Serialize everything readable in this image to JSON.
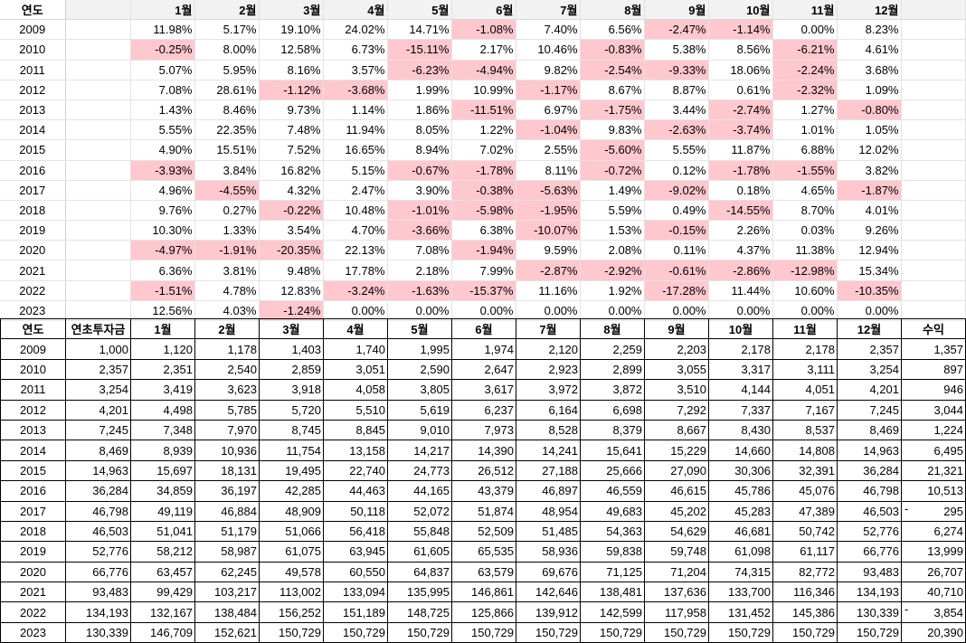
{
  "returns_table": {
    "year_header": "연도",
    "month_headers": [
      "1월",
      "2월",
      "3월",
      "4월",
      "5월",
      "6월",
      "7월",
      "8월",
      "9월",
      "10월",
      "11월",
      "12월"
    ],
    "rows": [
      {
        "year": "2009",
        "values": [
          "11.98%",
          "5.17%",
          "19.10%",
          "24.02%",
          "14.71%",
          "-1.08%",
          "7.40%",
          "6.56%",
          "-2.47%",
          "-1.14%",
          "0.00%",
          "8.23%"
        ]
      },
      {
        "year": "2010",
        "values": [
          "-0.25%",
          "8.00%",
          "12.58%",
          "6.73%",
          "-15.11%",
          "2.17%",
          "10.46%",
          "-0.83%",
          "5.38%",
          "8.56%",
          "-6.21%",
          "4.61%"
        ]
      },
      {
        "year": "2011",
        "values": [
          "5.07%",
          "5.95%",
          "8.16%",
          "3.57%",
          "-6.23%",
          "-4.94%",
          "9.82%",
          "-2.54%",
          "-9.33%",
          "18.06%",
          "-2.24%",
          "3.68%"
        ]
      },
      {
        "year": "2012",
        "values": [
          "7.08%",
          "28.61%",
          "-1.12%",
          "-3.68%",
          "1.99%",
          "10.99%",
          "-1.17%",
          "8.67%",
          "8.87%",
          "0.61%",
          "-2.32%",
          "1.09%"
        ]
      },
      {
        "year": "2013",
        "values": [
          "1.43%",
          "8.46%",
          "9.73%",
          "1.14%",
          "1.86%",
          "-11.51%",
          "6.97%",
          "-1.75%",
          "3.44%",
          "-2.74%",
          "1.27%",
          "-0.80%"
        ]
      },
      {
        "year": "2014",
        "values": [
          "5.55%",
          "22.35%",
          "7.48%",
          "11.94%",
          "8.05%",
          "1.22%",
          "-1.04%",
          "9.83%",
          "-2.63%",
          "-3.74%",
          "1.01%",
          "1.05%"
        ]
      },
      {
        "year": "2015",
        "values": [
          "4.90%",
          "15.51%",
          "7.52%",
          "16.65%",
          "8.94%",
          "7.02%",
          "2.55%",
          "-5.60%",
          "5.55%",
          "11.87%",
          "6.88%",
          "12.02%"
        ]
      },
      {
        "year": "2016",
        "values": [
          "-3.93%",
          "3.84%",
          "16.82%",
          "5.15%",
          "-0.67%",
          "-1.78%",
          "8.11%",
          "-0.72%",
          "0.12%",
          "-1.78%",
          "-1.55%",
          "3.82%"
        ]
      },
      {
        "year": "2017",
        "values": [
          "4.96%",
          "-4.55%",
          "4.32%",
          "2.47%",
          "3.90%",
          "-0.38%",
          "-5.63%",
          "1.49%",
          "-9.02%",
          "0.18%",
          "4.65%",
          "-1.87%"
        ]
      },
      {
        "year": "2018",
        "values": [
          "9.76%",
          "0.27%",
          "-0.22%",
          "10.48%",
          "-1.01%",
          "-5.98%",
          "-1.95%",
          "5.59%",
          "0.49%",
          "-14.55%",
          "8.70%",
          "4.01%"
        ]
      },
      {
        "year": "2019",
        "values": [
          "10.30%",
          "1.33%",
          "3.54%",
          "4.70%",
          "-3.66%",
          "6.38%",
          "-10.07%",
          "1.53%",
          "-0.15%",
          "2.26%",
          "0.03%",
          "9.26%"
        ]
      },
      {
        "year": "2020",
        "values": [
          "-4.97%",
          "-1.91%",
          "-20.35%",
          "22.13%",
          "7.08%",
          "-1.94%",
          "9.59%",
          "2.08%",
          "0.11%",
          "4.37%",
          "11.38%",
          "12.94%"
        ]
      },
      {
        "year": "2021",
        "values": [
          "6.36%",
          "3.81%",
          "9.48%",
          "17.78%",
          "2.18%",
          "7.99%",
          "-2.87%",
          "-2.92%",
          "-0.61%",
          "-2.86%",
          "-12.98%",
          "15.34%"
        ]
      },
      {
        "year": "2022",
        "values": [
          "-1.51%",
          "4.78%",
          "12.83%",
          "-3.24%",
          "-1.63%",
          "-15.37%",
          "11.16%",
          "1.92%",
          "-17.28%",
          "11.44%",
          "10.60%",
          "-10.35%"
        ]
      },
      {
        "year": "2023",
        "values": [
          "12.56%",
          "4.03%",
          "-1.24%",
          "0.00%",
          "0.00%",
          "0.00%",
          "0.00%",
          "0.00%",
          "0.00%",
          "0.00%",
          "0.00%",
          "0.00%"
        ]
      }
    ]
  },
  "balance_table": {
    "headers": [
      "연도",
      "연초투자금",
      "1월",
      "2월",
      "3월",
      "4월",
      "5월",
      "6월",
      "7월",
      "8월",
      "9월",
      "10월",
      "11월",
      "12월",
      "수익"
    ],
    "negative_marker": "-",
    "rows": [
      {
        "year": "2009",
        "start": "1,000",
        "months": [
          "1,120",
          "1,178",
          "1,403",
          "1,740",
          "1,995",
          "1,974",
          "2,120",
          "2,259",
          "2,203",
          "2,178",
          "2,178",
          "2,357"
        ],
        "profit": "1,357",
        "neg": false
      },
      {
        "year": "2010",
        "start": "2,357",
        "months": [
          "2,351",
          "2,540",
          "2,859",
          "3,051",
          "2,590",
          "2,647",
          "2,923",
          "2,899",
          "3,055",
          "3,317",
          "3,111",
          "3,254"
        ],
        "profit": "897",
        "neg": false
      },
      {
        "year": "2011",
        "start": "3,254",
        "months": [
          "3,419",
          "3,623",
          "3,918",
          "4,058",
          "3,805",
          "3,617",
          "3,972",
          "3,872",
          "3,510",
          "4,144",
          "4,051",
          "4,201"
        ],
        "profit": "946",
        "neg": false
      },
      {
        "year": "2012",
        "start": "4,201",
        "months": [
          "4,498",
          "5,785",
          "5,720",
          "5,510",
          "5,619",
          "6,237",
          "6,164",
          "6,698",
          "7,292",
          "7,337",
          "7,167",
          "7,245"
        ],
        "profit": "3,044",
        "neg": false
      },
      {
        "year": "2013",
        "start": "7,245",
        "months": [
          "7,348",
          "7,970",
          "8,745",
          "8,845",
          "9,010",
          "7,973",
          "8,528",
          "8,379",
          "8,667",
          "8,430",
          "8,537",
          "8,469"
        ],
        "profit": "1,224",
        "neg": false
      },
      {
        "year": "2014",
        "start": "8,469",
        "months": [
          "8,939",
          "10,936",
          "11,754",
          "13,158",
          "14,217",
          "14,390",
          "14,241",
          "15,641",
          "15,229",
          "14,660",
          "14,808",
          "14,963"
        ],
        "profit": "6,495",
        "neg": false
      },
      {
        "year": "2015",
        "start": "14,963",
        "months": [
          "15,697",
          "18,131",
          "19,495",
          "22,740",
          "24,773",
          "26,512",
          "27,188",
          "25,666",
          "27,090",
          "30,306",
          "32,391",
          "36,284"
        ],
        "profit": "21,321",
        "neg": false
      },
      {
        "year": "2016",
        "start": "36,284",
        "months": [
          "34,859",
          "36,197",
          "42,285",
          "44,463",
          "44,165",
          "43,379",
          "46,897",
          "46,559",
          "46,615",
          "45,786",
          "45,076",
          "46,798"
        ],
        "profit": "10,513",
        "neg": false
      },
      {
        "year": "2017",
        "start": "46,798",
        "months": [
          "49,119",
          "46,884",
          "48,909",
          "50,118",
          "52,072",
          "51,874",
          "48,954",
          "49,683",
          "45,202",
          "45,283",
          "47,389",
          "46,503"
        ],
        "profit": "295",
        "neg": true
      },
      {
        "year": "2018",
        "start": "46,503",
        "months": [
          "51,041",
          "51,179",
          "51,066",
          "56,418",
          "55,848",
          "52,509",
          "51,485",
          "54,363",
          "54,629",
          "46,681",
          "50,742",
          "52,776"
        ],
        "profit": "6,274",
        "neg": false
      },
      {
        "year": "2019",
        "start": "52,776",
        "months": [
          "58,212",
          "58,987",
          "61,075",
          "63,945",
          "61,605",
          "65,535",
          "58,936",
          "59,838",
          "59,748",
          "61,098",
          "61,117",
          "66,776"
        ],
        "profit": "13,999",
        "neg": false
      },
      {
        "year": "2020",
        "start": "66,776",
        "months": [
          "63,457",
          "62,245",
          "49,578",
          "60,550",
          "64,837",
          "63,579",
          "69,676",
          "71,125",
          "71,204",
          "74,315",
          "82,772",
          "93,483"
        ],
        "profit": "26,707",
        "neg": false
      },
      {
        "year": "2021",
        "start": "93,483",
        "months": [
          "99,429",
          "103,217",
          "113,002",
          "133,094",
          "135,995",
          "146,861",
          "142,646",
          "138,481",
          "137,636",
          "133,700",
          "116,346",
          "134,193"
        ],
        "profit": "40,710",
        "neg": false
      },
      {
        "year": "2022",
        "start": "134,193",
        "months": [
          "132,167",
          "138,484",
          "156,252",
          "151,189",
          "148,725",
          "125,866",
          "139,912",
          "142,599",
          "117,958",
          "131,452",
          "145,386",
          "130,339"
        ],
        "profit": "3,854",
        "neg": true
      },
      {
        "year": "2023",
        "start": "130,339",
        "months": [
          "146,709",
          "152,621",
          "150,729",
          "150,729",
          "150,729",
          "150,729",
          "150,729",
          "150,729",
          "150,729",
          "150,729",
          "150,729",
          "150,729"
        ],
        "profit": "20,390",
        "neg": false
      }
    ]
  },
  "colors": {
    "negative_fill": "#ffc7ce",
    "header_fill": "#f2f2f2"
  }
}
